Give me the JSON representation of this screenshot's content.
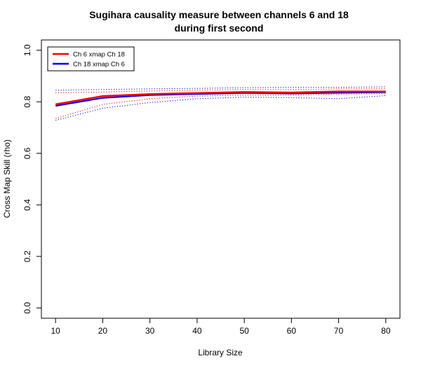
{
  "chart_data": {
    "type": "line",
    "title_line1": "Sugihara causality measure between channels  6 and 18",
    "title_line2": "during first second",
    "xlabel": "Library Size",
    "ylabel": "Cross Map Skill (rho)",
    "xlim": [
      7,
      83
    ],
    "ylim": [
      -0.04,
      1.04
    ],
    "xticks": [
      10,
      20,
      30,
      40,
      50,
      60,
      70,
      80
    ],
    "yticks": [
      0.0,
      0.2,
      0.4,
      0.6,
      0.8,
      1.0
    ],
    "ytick_labels": [
      "0.0",
      "0.2",
      "0.4",
      "0.6",
      "0.8",
      "1.0"
    ],
    "grid": false,
    "legend_position": "top-left",
    "x": [
      10,
      20,
      30,
      40,
      50,
      60,
      70,
      80
    ],
    "series": [
      {
        "name": "Ch 6 xmap Ch 18",
        "color": "#ff0000",
        "values": [
          0.79,
          0.822,
          0.83,
          0.834,
          0.838,
          0.836,
          0.84,
          0.84
        ],
        "lower": [
          0.735,
          0.79,
          0.812,
          0.822,
          0.826,
          0.826,
          0.83,
          0.832
        ],
        "upper": [
          0.835,
          0.838,
          0.842,
          0.845,
          0.848,
          0.847,
          0.85,
          0.85
        ]
      },
      {
        "name": "Ch 18  xmap Ch 6",
        "color": "#0000ff",
        "values": [
          0.784,
          0.815,
          0.826,
          0.83,
          0.834,
          0.832,
          0.835,
          0.837
        ],
        "lower": [
          0.728,
          0.775,
          0.797,
          0.812,
          0.818,
          0.816,
          0.812,
          0.824
        ],
        "upper": [
          0.845,
          0.848,
          0.85,
          0.852,
          0.855,
          0.856,
          0.856,
          0.858
        ]
      }
    ]
  }
}
